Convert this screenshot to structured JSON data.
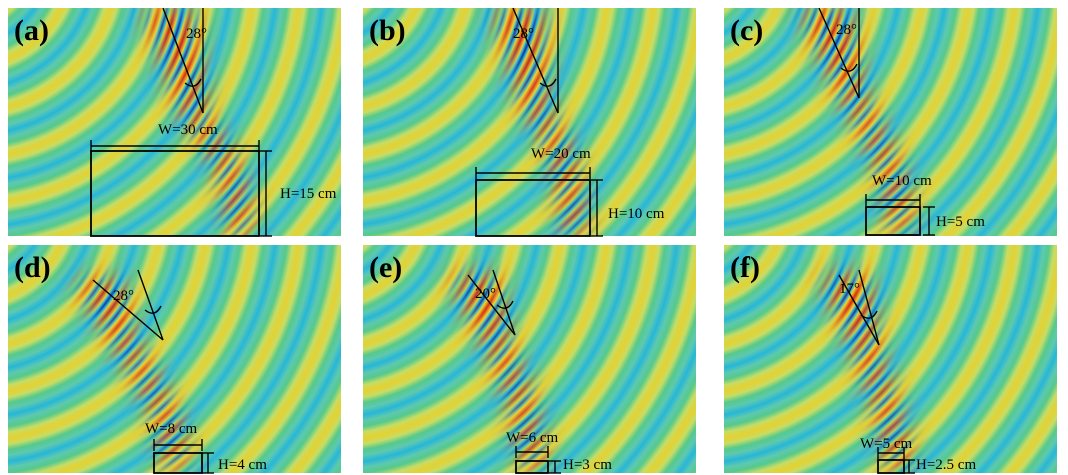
{
  "colors": {
    "background": "#55c98c",
    "wave_positive": "#ffd21f",
    "wave_peak": "#ce1414",
    "wave_negative": "#1eb3e6",
    "wave_trough": "#16208f"
  },
  "panels": [
    {
      "label": "(a)",
      "angle": "28°",
      "width_label": "W=30 cm",
      "height_label": "H=15 cm"
    },
    {
      "label": "(b)",
      "angle": "28°",
      "width_label": "W=20 cm",
      "height_label": "H=10 cm"
    },
    {
      "label": "(c)",
      "angle": "28°",
      "width_label": "W=10 cm",
      "height_label": "H=5 cm"
    },
    {
      "label": "(d)",
      "angle": "28°",
      "width_label": "W=8 cm",
      "height_label": "H=4 cm"
    },
    {
      "label": "(e)",
      "angle": "20°",
      "width_label": "W=6 cm",
      "height_label": "H=3 cm"
    },
    {
      "label": "(f)",
      "angle": "17°",
      "width_label": "W=5 cm",
      "height_label": "H=2.5 cm"
    }
  ]
}
